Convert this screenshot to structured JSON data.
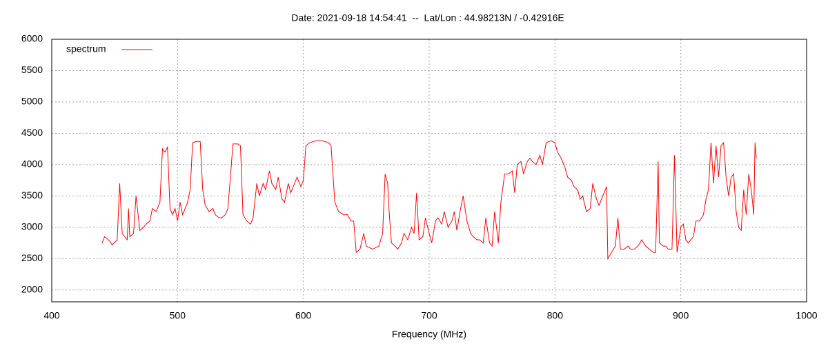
{
  "chart_data": {
    "type": "line",
    "title": "Date: 2021-09-18 14:54:41  --  Lat/Lon : 44.98213N / -0.42916E",
    "x_label": "Frequency (MHz)",
    "x": [
      440,
      442,
      444,
      446,
      448,
      450,
      452,
      454,
      456,
      458,
      460,
      461,
      462,
      465,
      467,
      470,
      473,
      475,
      478,
      480,
      483,
      486,
      488,
      490,
      492,
      494,
      496,
      498,
      500,
      502,
      504,
      506,
      508,
      510,
      512,
      515,
      518,
      520,
      522,
      525,
      528,
      530,
      533,
      535,
      538,
      540,
      542,
      544,
      548,
      550,
      552,
      555,
      558,
      560,
      563,
      565,
      568,
      570,
      573,
      575,
      578,
      580,
      583,
      585,
      588,
      590,
      593,
      595,
      598,
      600,
      602,
      605,
      610,
      615,
      620,
      622,
      625,
      628,
      632,
      635,
      638,
      640,
      642,
      645,
      648,
      650,
      655,
      660,
      663,
      665,
      667,
      668,
      670,
      673,
      675,
      678,
      680,
      683,
      686,
      688,
      690,
      692,
      695,
      697,
      700,
      702,
      705,
      707,
      710,
      712,
      715,
      718,
      720,
      722,
      725,
      727,
      730,
      733,
      735,
      738,
      740,
      743,
      745,
      748,
      750,
      752,
      755,
      757,
      760,
      763,
      766,
      768,
      770,
      773,
      775,
      778,
      780,
      782,
      785,
      788,
      790,
      793,
      797,
      800,
      802,
      805,
      808,
      810,
      813,
      815,
      818,
      820,
      822,
      825,
      828,
      830,
      833,
      835,
      838,
      841,
      842,
      845,
      848,
      850,
      852,
      855,
      858,
      860,
      863,
      866,
      869,
      872,
      875,
      878,
      880,
      882,
      883,
      886,
      888,
      890,
      893,
      895,
      897,
      900,
      902,
      904,
      906,
      908,
      910,
      912,
      915,
      918,
      920,
      922,
      924,
      926,
      928,
      930,
      932,
      934,
      936,
      938,
      940,
      942,
      944,
      946,
      948,
      950,
      952,
      954,
      956,
      958,
      959,
      960
    ],
    "series": [
      {
        "name": "spectrum",
        "color": "#ff0000",
        "values": [
          2750,
          2850,
          2820,
          2780,
          2720,
          2760,
          2800,
          3700,
          2900,
          2850,
          2800,
          3300,
          2850,
          2900,
          3500,
          2950,
          3000,
          3050,
          3100,
          3300,
          3250,
          3400,
          4250,
          4200,
          4280,
          3300,
          3200,
          3300,
          3100,
          3400,
          3200,
          3300,
          3400,
          3600,
          4350,
          4370,
          4370,
          3600,
          3350,
          3250,
          3300,
          3200,
          3150,
          3150,
          3200,
          3300,
          3800,
          4330,
          4330,
          4300,
          3200,
          3100,
          3050,
          3150,
          3700,
          3500,
          3700,
          3600,
          3900,
          3700,
          3600,
          3800,
          3450,
          3400,
          3700,
          3550,
          3700,
          3800,
          3650,
          3750,
          4300,
          4350,
          4380,
          4380,
          4350,
          4300,
          3400,
          3250,
          3200,
          3200,
          3100,
          3100,
          2600,
          2650,
          2900,
          2700,
          2650,
          2700,
          2900,
          3850,
          3700,
          3300,
          2750,
          2700,
          2650,
          2750,
          2900,
          2800,
          3000,
          2900,
          3550,
          2800,
          2850,
          3150,
          2900,
          2750,
          3100,
          3150,
          3050,
          3250,
          3000,
          3100,
          3250,
          2950,
          3300,
          3500,
          3100,
          2900,
          2850,
          2800,
          2800,
          2750,
          3150,
          2750,
          2700,
          3250,
          2750,
          3400,
          3850,
          3850,
          3900,
          3550,
          4000,
          4050,
          3850,
          4050,
          4100,
          4050,
          4000,
          4150,
          4000,
          4350,
          4380,
          4350,
          4200,
          4100,
          3950,
          3800,
          3750,
          3650,
          3600,
          3450,
          3500,
          3250,
          3300,
          3700,
          3450,
          3350,
          3500,
          3650,
          2500,
          2600,
          2700,
          3150,
          2650,
          2650,
          2700,
          2650,
          2650,
          2700,
          2800,
          2700,
          2650,
          2600,
          2600,
          4050,
          2750,
          2700,
          2700,
          2650,
          2650,
          4150,
          2600,
          3000,
          3050,
          2800,
          2750,
          2800,
          2850,
          3100,
          3100,
          3200,
          3450,
          3600,
          4350,
          3700,
          4300,
          3800,
          4300,
          4350,
          3800,
          3500,
          3800,
          3850,
          3250,
          3000,
          2950,
          3600,
          3200,
          3850,
          3600,
          3200,
          4350,
          4100
        ]
      }
    ],
    "xlim": [
      400,
      1000
    ],
    "xticks": [
      400,
      500,
      600,
      700,
      800,
      900,
      1000
    ],
    "ylim": [
      1810,
      6000
    ],
    "yticks": [
      2000,
      2500,
      3000,
      3500,
      4000,
      4500,
      5000,
      5500,
      6000
    ],
    "grid": true,
    "legend": "top-left"
  }
}
